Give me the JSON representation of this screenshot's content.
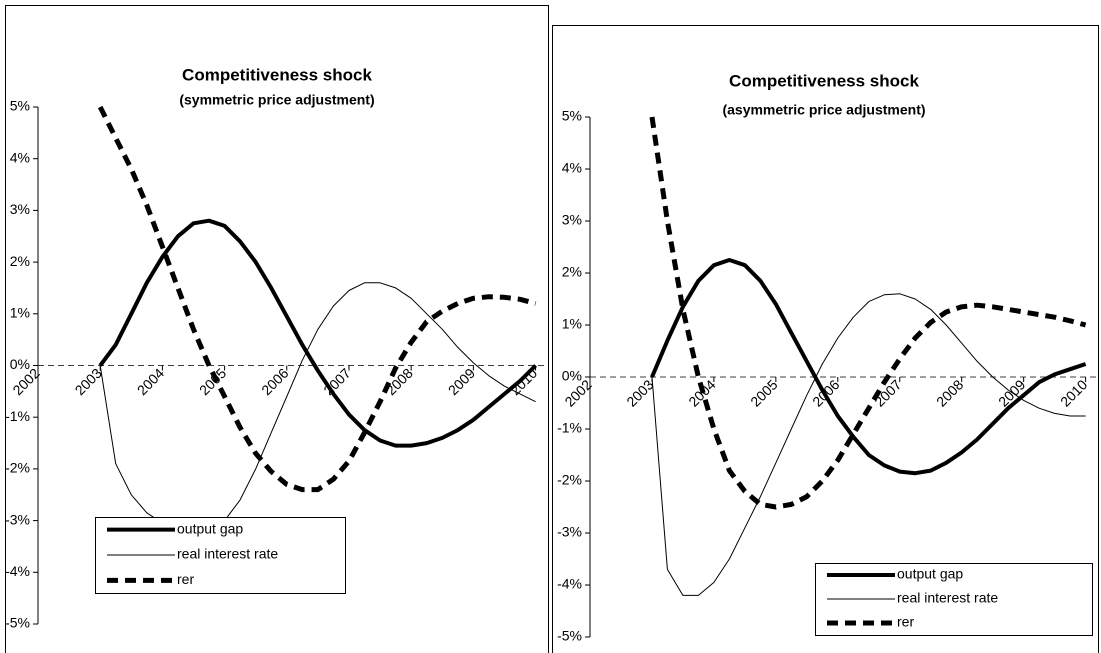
{
  "chart_data": [
    {
      "type": "line",
      "title": "Competitiveness shock",
      "subtitle": "(symmetric price adjustment)",
      "x": [
        2003,
        2003.25,
        2003.5,
        2003.75,
        2004,
        2004.25,
        2004.5,
        2004.75,
        2005,
        2005.25,
        2005.5,
        2005.75,
        2006,
        2006.25,
        2006.5,
        2006.75,
        2007,
        2007.25,
        2007.5,
        2007.75,
        2008,
        2008.25,
        2008.5,
        2008.75,
        2009,
        2009.25,
        2009.5,
        2009.75,
        2010
      ],
      "xlim": [
        2002,
        2010.2
      ],
      "xticks": [
        2002,
        2003,
        2004,
        2005,
        2006,
        2007,
        2008,
        2009,
        2010
      ],
      "ylim": [
        -5,
        5
      ],
      "yticks": [
        {
          "value": -5,
          "label": "-5%"
        },
        {
          "value": -4,
          "label": "-4%"
        },
        {
          "value": -3,
          "label": "-3%"
        },
        {
          "value": -2,
          "label": "-2%"
        },
        {
          "value": -1,
          "label": "-1%"
        },
        {
          "value": 0,
          "label": "0%"
        },
        {
          "value": 1,
          "label": "1%"
        },
        {
          "value": 2,
          "label": "2%"
        },
        {
          "value": 3,
          "label": "3%"
        },
        {
          "value": 4,
          "label": "4%"
        },
        {
          "value": 5,
          "label": "5%"
        }
      ],
      "legend": "lower left",
      "series": [
        {
          "name": "output gap",
          "color": "#000000",
          "linewidth": 4,
          "linestyle": "solid",
          "values": [
            0,
            0.4,
            1.0,
            1.6,
            2.1,
            2.5,
            2.75,
            2.8,
            2.7,
            2.4,
            2.0,
            1.5,
            0.95,
            0.4,
            -0.1,
            -0.55,
            -0.95,
            -1.25,
            -1.45,
            -1.55,
            -1.55,
            -1.5,
            -1.4,
            -1.25,
            -1.05,
            -0.8,
            -0.55,
            -0.3,
            0
          ]
        },
        {
          "name": "real interest rate",
          "color": "#000000",
          "linewidth": 1,
          "linestyle": "solid",
          "values": [
            0,
            -1.9,
            -2.5,
            -2.85,
            -3.05,
            -3.15,
            -3.15,
            -3.15,
            -3.0,
            -2.6,
            -2.0,
            -1.3,
            -0.6,
            0.1,
            0.7,
            1.15,
            1.45,
            1.6,
            1.6,
            1.5,
            1.3,
            1.0,
            0.7,
            0.35,
            0.05,
            -0.2,
            -0.4,
            -0.55,
            -0.7
          ]
        },
        {
          "name": "rer",
          "color": "#000000",
          "linewidth": 5,
          "linestyle": "dashed",
          "values": [
            5.0,
            4.4,
            3.8,
            3.1,
            2.3,
            1.5,
            0.7,
            0.0,
            -0.6,
            -1.2,
            -1.7,
            -2.05,
            -2.3,
            -2.4,
            -2.4,
            -2.2,
            -1.85,
            -1.3,
            -0.7,
            -0.05,
            0.45,
            0.85,
            1.05,
            1.2,
            1.3,
            1.33,
            1.32,
            1.28,
            1.2
          ]
        }
      ]
    },
    {
      "type": "line",
      "title": "Competitiveness shock",
      "subtitle": "(asymmetric price adjustment)",
      "x": [
        2003,
        2003.25,
        2003.5,
        2003.75,
        2004,
        2004.25,
        2004.5,
        2004.75,
        2005,
        2005.25,
        2005.5,
        2005.75,
        2006,
        2006.25,
        2006.5,
        2006.75,
        2007,
        2007.25,
        2007.5,
        2007.75,
        2008,
        2008.25,
        2008.5,
        2008.75,
        2009,
        2009.25,
        2009.5,
        2009.75,
        2010
      ],
      "xlim": [
        2002,
        2010.2
      ],
      "xticks": [
        2002,
        2003,
        2004,
        2005,
        2006,
        2007,
        2008,
        2009,
        2010
      ],
      "ylim": [
        -5,
        5
      ],
      "yticks": [
        {
          "value": -5,
          "label": "-5%"
        },
        {
          "value": -4,
          "label": "-4%"
        },
        {
          "value": -3,
          "label": "-3%"
        },
        {
          "value": -2,
          "label": "-2%"
        },
        {
          "value": -1,
          "label": "-1%"
        },
        {
          "value": 0,
          "label": "0%"
        },
        {
          "value": 1,
          "label": "1%"
        },
        {
          "value": 2,
          "label": "2%"
        },
        {
          "value": 3,
          "label": "3%"
        },
        {
          "value": 4,
          "label": "4%"
        },
        {
          "value": 5,
          "label": "5%"
        }
      ],
      "legend": "lower right",
      "series": [
        {
          "name": "output gap",
          "color": "#000000",
          "linewidth": 4,
          "linestyle": "solid",
          "values": [
            0,
            0.7,
            1.35,
            1.85,
            2.15,
            2.25,
            2.15,
            1.85,
            1.4,
            0.85,
            0.3,
            -0.25,
            -0.75,
            -1.15,
            -1.5,
            -1.7,
            -1.82,
            -1.85,
            -1.8,
            -1.65,
            -1.45,
            -1.2,
            -0.9,
            -0.6,
            -0.35,
            -0.1,
            0.05,
            0.15,
            0.25
          ]
        },
        {
          "name": "real interest rate",
          "color": "#000000",
          "linewidth": 1,
          "linestyle": "solid",
          "values": [
            0,
            -3.7,
            -4.2,
            -4.2,
            -3.95,
            -3.5,
            -2.9,
            -2.3,
            -1.65,
            -1.0,
            -0.35,
            0.25,
            0.75,
            1.15,
            1.45,
            1.58,
            1.6,
            1.5,
            1.3,
            1.0,
            0.65,
            0.3,
            0.0,
            -0.25,
            -0.45,
            -0.6,
            -0.7,
            -0.75,
            -0.75
          ]
        },
        {
          "name": "rer",
          "color": "#000000",
          "linewidth": 5,
          "linestyle": "dashed",
          "values": [
            5.0,
            3.0,
            1.3,
            0.0,
            -1.0,
            -1.8,
            -2.2,
            -2.45,
            -2.5,
            -2.45,
            -2.3,
            -2.0,
            -1.6,
            -1.1,
            -0.6,
            -0.1,
            0.35,
            0.75,
            1.05,
            1.25,
            1.35,
            1.38,
            1.35,
            1.3,
            1.25,
            1.2,
            1.15,
            1.08,
            1.0
          ]
        }
      ]
    }
  ]
}
